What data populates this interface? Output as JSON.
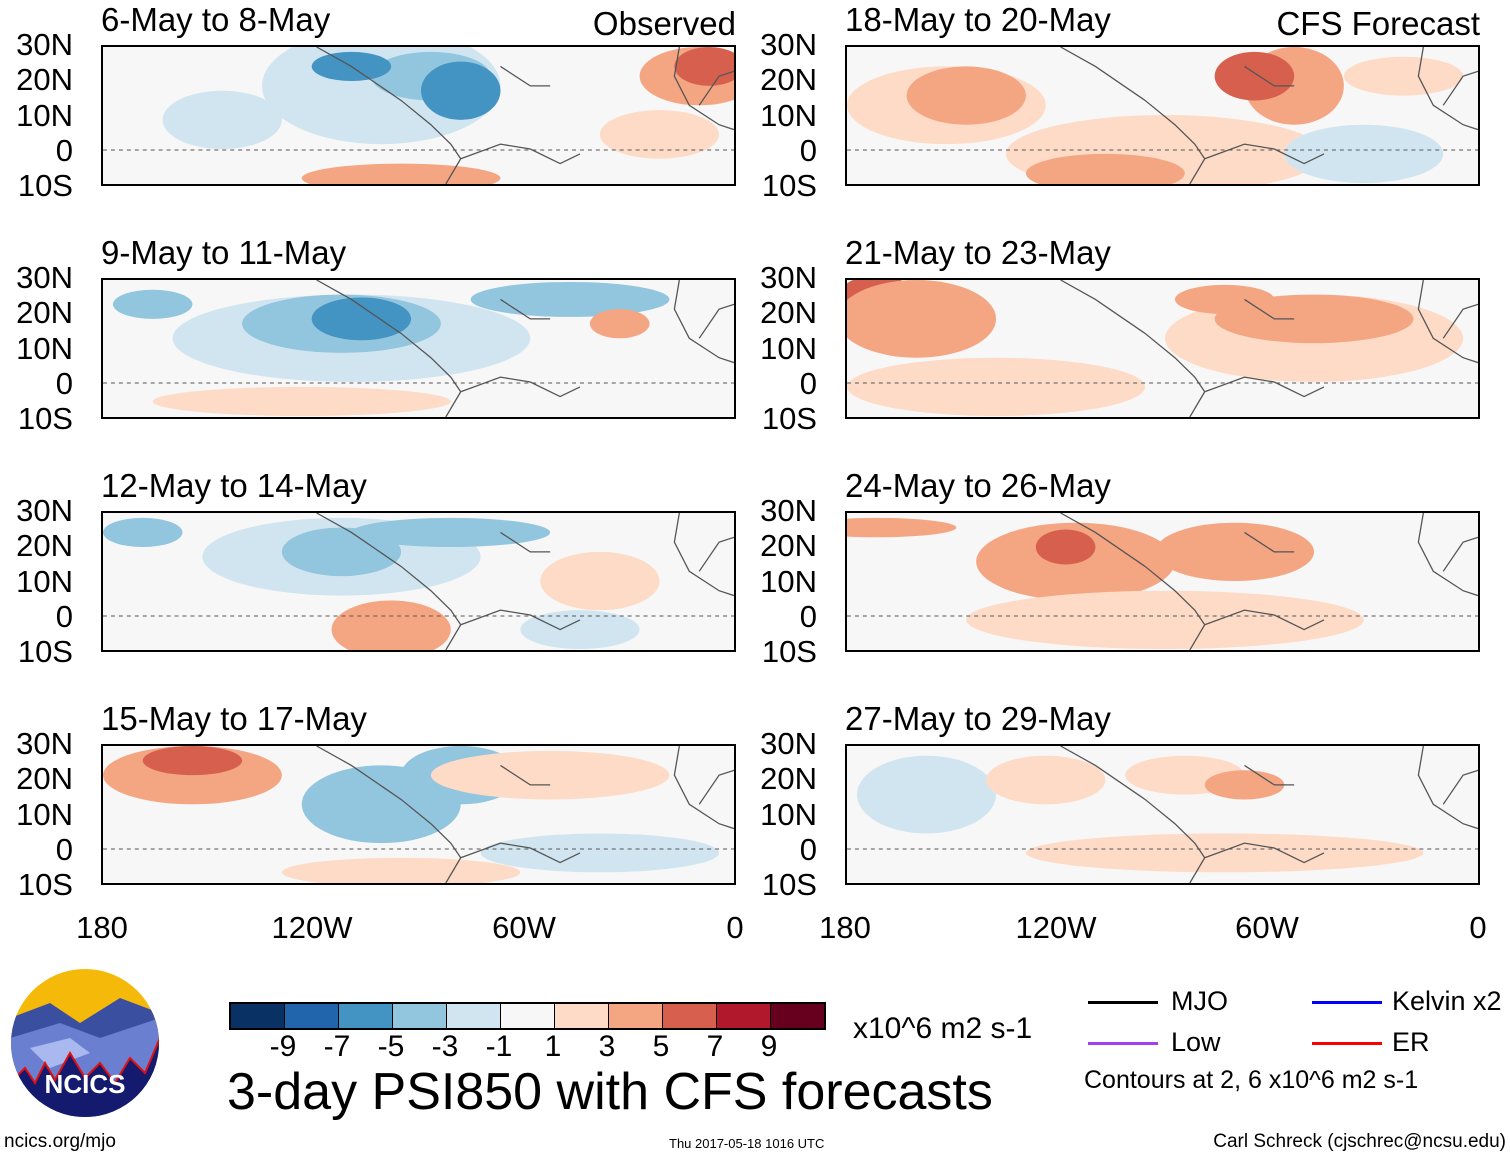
{
  "panels": [
    {
      "title": "6-May to 8-May",
      "label": "Observed"
    },
    {
      "title": "18-May to 20-May",
      "label": "CFS Forecast"
    },
    {
      "title": "9-May to 11-May",
      "label": ""
    },
    {
      "title": "21-May to 23-May",
      "label": ""
    },
    {
      "title": "12-May to 14-May",
      "label": ""
    },
    {
      "title": "24-May to 26-May",
      "label": ""
    },
    {
      "title": "15-May to 17-May",
      "label": ""
    },
    {
      "title": "27-May to 29-May",
      "label": ""
    }
  ],
  "lat_labels": [
    "30N",
    "20N",
    "10N",
    "0",
    "10S"
  ],
  "lon_labels": [
    "180",
    "120W",
    "60W",
    "0"
  ],
  "colorbar": {
    "colors": [
      "#0a3163",
      "#2166ac",
      "#4393c3",
      "#92c5de",
      "#d1e5f0",
      "#f7f7f7",
      "#fddbc7",
      "#f4a582",
      "#d6604d",
      "#b2182b",
      "#67001f"
    ],
    "ticks": [
      "-9",
      "-7",
      "-5",
      "-3",
      "-1",
      "1",
      "3",
      "5",
      "7",
      "9"
    ],
    "units": "x10^6 m2 s-1"
  },
  "title": "3-day PSI850 with CFS forecasts",
  "legend": {
    "items": [
      {
        "label": "MJO",
        "color": "#000000"
      },
      {
        "label": "Kelvin x2",
        "color": "#0000ff"
      },
      {
        "label": "Low",
        "color": "#a040f0"
      },
      {
        "label": "ER",
        "color": "#ff0000"
      }
    ],
    "contours": "Contours at 2, 6 x10^6 m2 s-1"
  },
  "logo": {
    "text": "NCICS"
  },
  "footer": {
    "url": "ncics.org/mjo",
    "timestamp": "Thu 2017-05-18 1016 UTC",
    "author": "Carl Schreck (cjschrec@ncsu.edu)"
  }
}
